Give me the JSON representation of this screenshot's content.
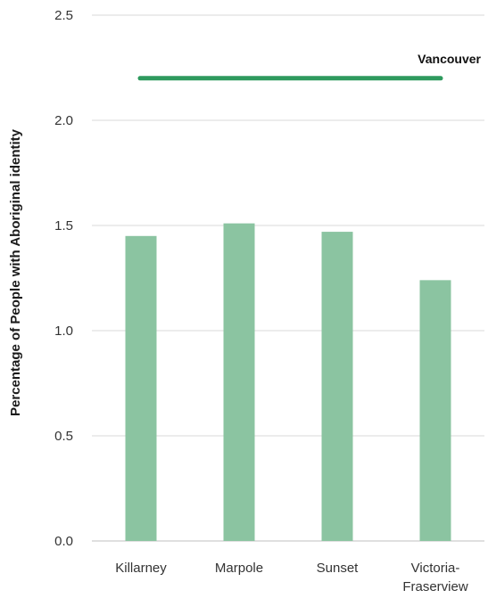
{
  "chart_data": {
    "type": "bar",
    "title": "",
    "xlabel": "",
    "ylabel": "Percentage of People with Aboriginal identity",
    "ylim": [
      0,
      2.5
    ],
    "yticks": [
      "0.0",
      "0.5",
      "1.0",
      "1.5",
      "2.0",
      "2.5"
    ],
    "categories": [
      [
        "Killarney"
      ],
      [
        "Marpole"
      ],
      [
        "Sunset"
      ],
      [
        "Victoria-",
        "Fraserview"
      ]
    ],
    "values": [
      1.45,
      1.51,
      1.47,
      1.24
    ],
    "reference_line": {
      "label": "Vancouver",
      "value": 2.2,
      "color": "#2e9a5e"
    },
    "bar_color": "#8bc4a1",
    "grid": true,
    "legend": "none"
  }
}
